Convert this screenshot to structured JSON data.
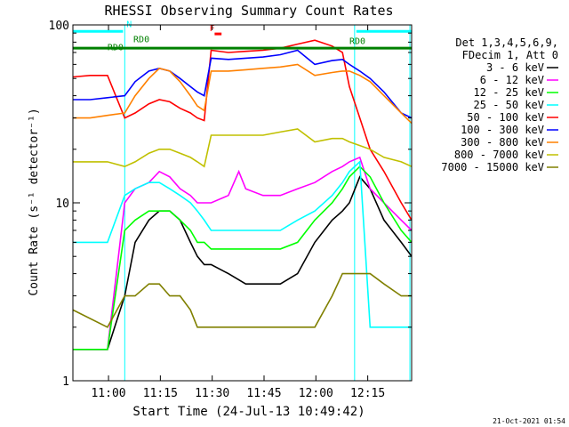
{
  "chart_data": {
    "type": "line",
    "title": "RHESSI Observing Summary Count Rates",
    "xlabel": "Start Time (24-Jul-13 10:49:42)",
    "ylabel": "Count Rate (s⁻¹ detector⁻¹)",
    "x_unit": "minutes since 10:49:42",
    "xlim": [
      0,
      98
    ],
    "ylim": [
      1,
      100
    ],
    "yscale": "log",
    "x_ticks": [
      {
        "label": "11:00",
        "value": 10.3
      },
      {
        "label": "11:15",
        "value": 25.3
      },
      {
        "label": "11:30",
        "value": 40.3
      },
      {
        "label": "11:45",
        "value": 55.3
      },
      {
        "label": "12:00",
        "value": 70.3
      },
      {
        "label": "12:15",
        "value": 85.3
      }
    ],
    "y_ticks": [
      {
        "label": "1",
        "value": 1
      },
      {
        "label": "10",
        "value": 10
      },
      {
        "label": "100",
        "value": 100
      }
    ],
    "legend_header": [
      "Det 1,3,4,5,6,9,",
      "FDecim 1, Att 0"
    ],
    "legend_position": "right",
    "grid": false,
    "series": [
      {
        "name": "3 - 6 keV",
        "color": "#000000",
        "x": [
          0,
          10,
          15,
          18,
          22,
          25,
          28,
          31,
          34,
          36,
          38,
          40,
          45,
          50,
          55,
          60,
          65,
          70,
          75,
          78,
          80,
          83,
          86,
          90,
          95,
          98
        ],
        "y": [
          1.5,
          1.5,
          3,
          6,
          8,
          9,
          9,
          8,
          6,
          5,
          4.5,
          4.5,
          4,
          3.5,
          3.5,
          3.5,
          4,
          6,
          8,
          9,
          10,
          14,
          12,
          8,
          6,
          5
        ]
      },
      {
        "name": "6 - 12 keV",
        "color": "#ff00ff",
        "x": [
          0,
          10,
          15,
          18,
          22,
          25,
          28,
          31,
          34,
          36,
          38,
          40,
          45,
          48,
          50,
          55,
          60,
          65,
          70,
          75,
          78,
          80,
          83,
          86,
          90,
          95,
          98
        ],
        "y": [
          1.5,
          1.5,
          10,
          12,
          13,
          15,
          14,
          12,
          11,
          10,
          10,
          10,
          11,
          15,
          12,
          11,
          11,
          12,
          13,
          15,
          16,
          17,
          18,
          12,
          10,
          8,
          7
        ]
      },
      {
        "name": "12 - 25 keV",
        "color": "#00ff00",
        "x": [
          0,
          10,
          15,
          18,
          22,
          25,
          28,
          31,
          34,
          36,
          38,
          40,
          45,
          50,
          55,
          60,
          65,
          70,
          75,
          78,
          80,
          83,
          86,
          90,
          95,
          98
        ],
        "y": [
          1.5,
          1.5,
          7,
          8,
          9,
          9,
          9,
          8,
          7,
          6,
          6,
          5.5,
          5.5,
          5.5,
          5.5,
          5.5,
          6,
          8,
          10,
          12,
          14,
          16,
          14,
          10,
          7,
          6
        ]
      },
      {
        "name": "25 - 50 keV",
        "color": "#00ffff",
        "x": [
          0,
          10,
          15,
          18,
          22,
          25,
          28,
          31,
          34,
          36,
          38,
          40,
          45,
          50,
          55,
          60,
          65,
          70,
          75,
          78,
          80,
          83,
          86,
          90,
          95,
          98
        ],
        "y": [
          6,
          6,
          11,
          12,
          13,
          13,
          12,
          11,
          10,
          9,
          8,
          7,
          7,
          7,
          7,
          7,
          8,
          9,
          11,
          13,
          15,
          17,
          2,
          2,
          2,
          2
        ]
      },
      {
        "name": "50 - 100 keV",
        "color": "#ff0000",
        "x": [
          0,
          5,
          10,
          15,
          18,
          22,
          25,
          28,
          31,
          34,
          36,
          38,
          40,
          45,
          50,
          55,
          60,
          65,
          70,
          75,
          78,
          80,
          83,
          86,
          90,
          95,
          98
        ],
        "y": [
          51,
          52,
          52,
          30,
          32,
          36,
          38,
          37,
          34,
          32,
          30,
          29,
          72,
          70,
          71,
          72,
          74,
          78,
          82,
          76,
          70,
          45,
          30,
          20,
          15,
          10,
          8
        ]
      },
      {
        "name": "100 - 300 keV",
        "color": "#0000ff",
        "x": [
          0,
          5,
          10,
          15,
          18,
          22,
          25,
          28,
          31,
          34,
          36,
          38,
          40,
          45,
          50,
          55,
          60,
          65,
          70,
          75,
          78,
          80,
          83,
          86,
          90,
          95,
          98
        ],
        "y": [
          38,
          38,
          39,
          40,
          48,
          55,
          57,
          55,
          50,
          45,
          42,
          40,
          65,
          64,
          65,
          66,
          68,
          72,
          60,
          63,
          64,
          60,
          55,
          50,
          42,
          32,
          30
        ]
      },
      {
        "name": "300 - 800 keV",
        "color": "#ff8000",
        "x": [
          0,
          5,
          10,
          15,
          18,
          22,
          25,
          28,
          31,
          34,
          36,
          38,
          40,
          45,
          50,
          55,
          60,
          65,
          70,
          75,
          78,
          80,
          83,
          86,
          90,
          95,
          98
        ],
        "y": [
          30,
          30,
          31,
          32,
          40,
          50,
          57,
          55,
          48,
          40,
          35,
          33,
          55,
          55,
          56,
          57,
          58,
          60,
          52,
          54,
          55,
          55,
          52,
          48,
          40,
          32,
          28
        ]
      },
      {
        "name": "800 - 7000 keV",
        "color": "#c0c000",
        "x": [
          0,
          5,
          10,
          15,
          18,
          22,
          25,
          28,
          31,
          34,
          36,
          38,
          40,
          45,
          50,
          55,
          60,
          65,
          70,
          75,
          78,
          80,
          83,
          86,
          90,
          95,
          98
        ],
        "y": [
          17,
          17,
          17,
          16,
          17,
          19,
          20,
          20,
          19,
          18,
          17,
          16,
          24,
          24,
          24,
          24,
          25,
          26,
          22,
          23,
          23,
          22,
          21,
          20,
          18,
          17,
          16
        ]
      },
      {
        "name": "7000 - 15000 keV",
        "color": "#808000",
        "x": [
          0,
          10,
          15,
          18,
          22,
          25,
          28,
          31,
          34,
          36,
          38,
          40,
          45,
          50,
          55,
          60,
          65,
          70,
          75,
          78,
          80,
          83,
          86,
          90,
          95,
          98
        ],
        "y": [
          2.5,
          2,
          3,
          3,
          3.5,
          3.5,
          3,
          3,
          2.5,
          2,
          2,
          2,
          2,
          2,
          2,
          2,
          2,
          2,
          3,
          4,
          4,
          4,
          4,
          3.5,
          3,
          3
        ]
      }
    ],
    "annotations": [
      {
        "text": "N",
        "color": "#00ffff",
        "x": 15.5,
        "y": 97
      },
      {
        "text": "RD0",
        "color": "#008000",
        "x": 17.5,
        "y": 80
      },
      {
        "text": "RD0",
        "color": "#008000",
        "x": 10,
        "y": 72
      },
      {
        "text": "F",
        "color": "#ff0000",
        "x": 39.5,
        "y": 92
      },
      {
        "text": "RD0",
        "color": "#008000",
        "x": 80,
        "y": 78
      }
    ],
    "state_bars": [
      {
        "name": "night",
        "color": "#00ffff",
        "x_from": 0,
        "x_to": 14.5,
        "y": 92
      },
      {
        "name": "night",
        "color": "#00ffff",
        "x_from": 82,
        "x_to": 98,
        "y": 92
      },
      {
        "name": "radiation-belt",
        "color": "#008000",
        "x_from": 0,
        "x_to": 98,
        "y": 74
      },
      {
        "name": "flare",
        "color": "#ff0000",
        "x_from": 41,
        "x_to": 43,
        "y": 89
      }
    ],
    "vertical_lines": [
      {
        "color": "#00ffff",
        "x": 15
      },
      {
        "color": "#00ffff",
        "x": 81.5
      },
      {
        "color": "#00ffff",
        "x": 97.5
      }
    ]
  },
  "footer": {
    "timestamp": "21-Oct-2021 01:54"
  }
}
